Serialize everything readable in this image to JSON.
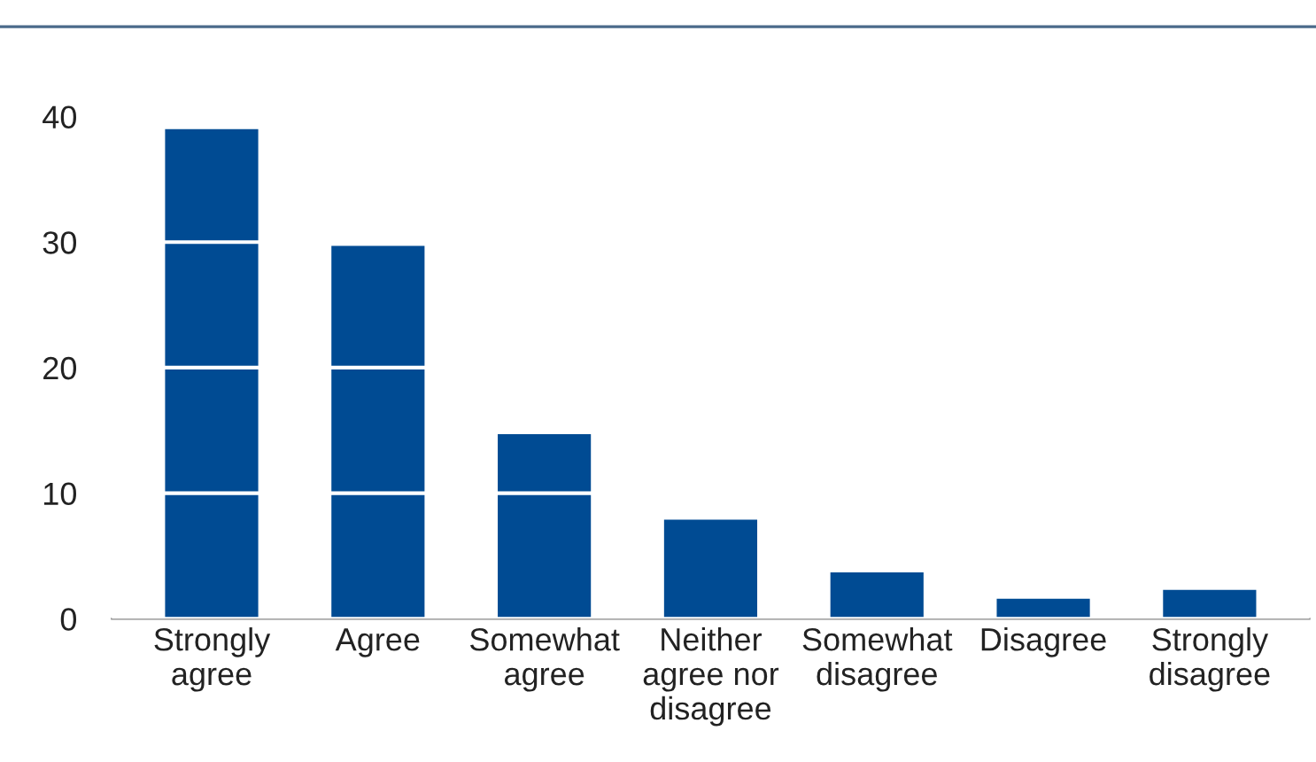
{
  "chart_data": {
    "type": "bar",
    "categories": [
      "Strongly\nagree",
      "Agree",
      "Somewhat\nagree",
      "Neither\nagree nor\ndisagree",
      "Somewhat\ndisagree",
      "Disagree",
      "Strongly\ndisagree"
    ],
    "values": [
      39.0,
      29.7,
      14.7,
      7.9,
      3.7,
      1.6,
      2.3
    ],
    "color": "#004b93",
    "ylim": [
      0,
      40
    ],
    "yticks": [
      0,
      10,
      20,
      30,
      40
    ],
    "grid": "y"
  }
}
